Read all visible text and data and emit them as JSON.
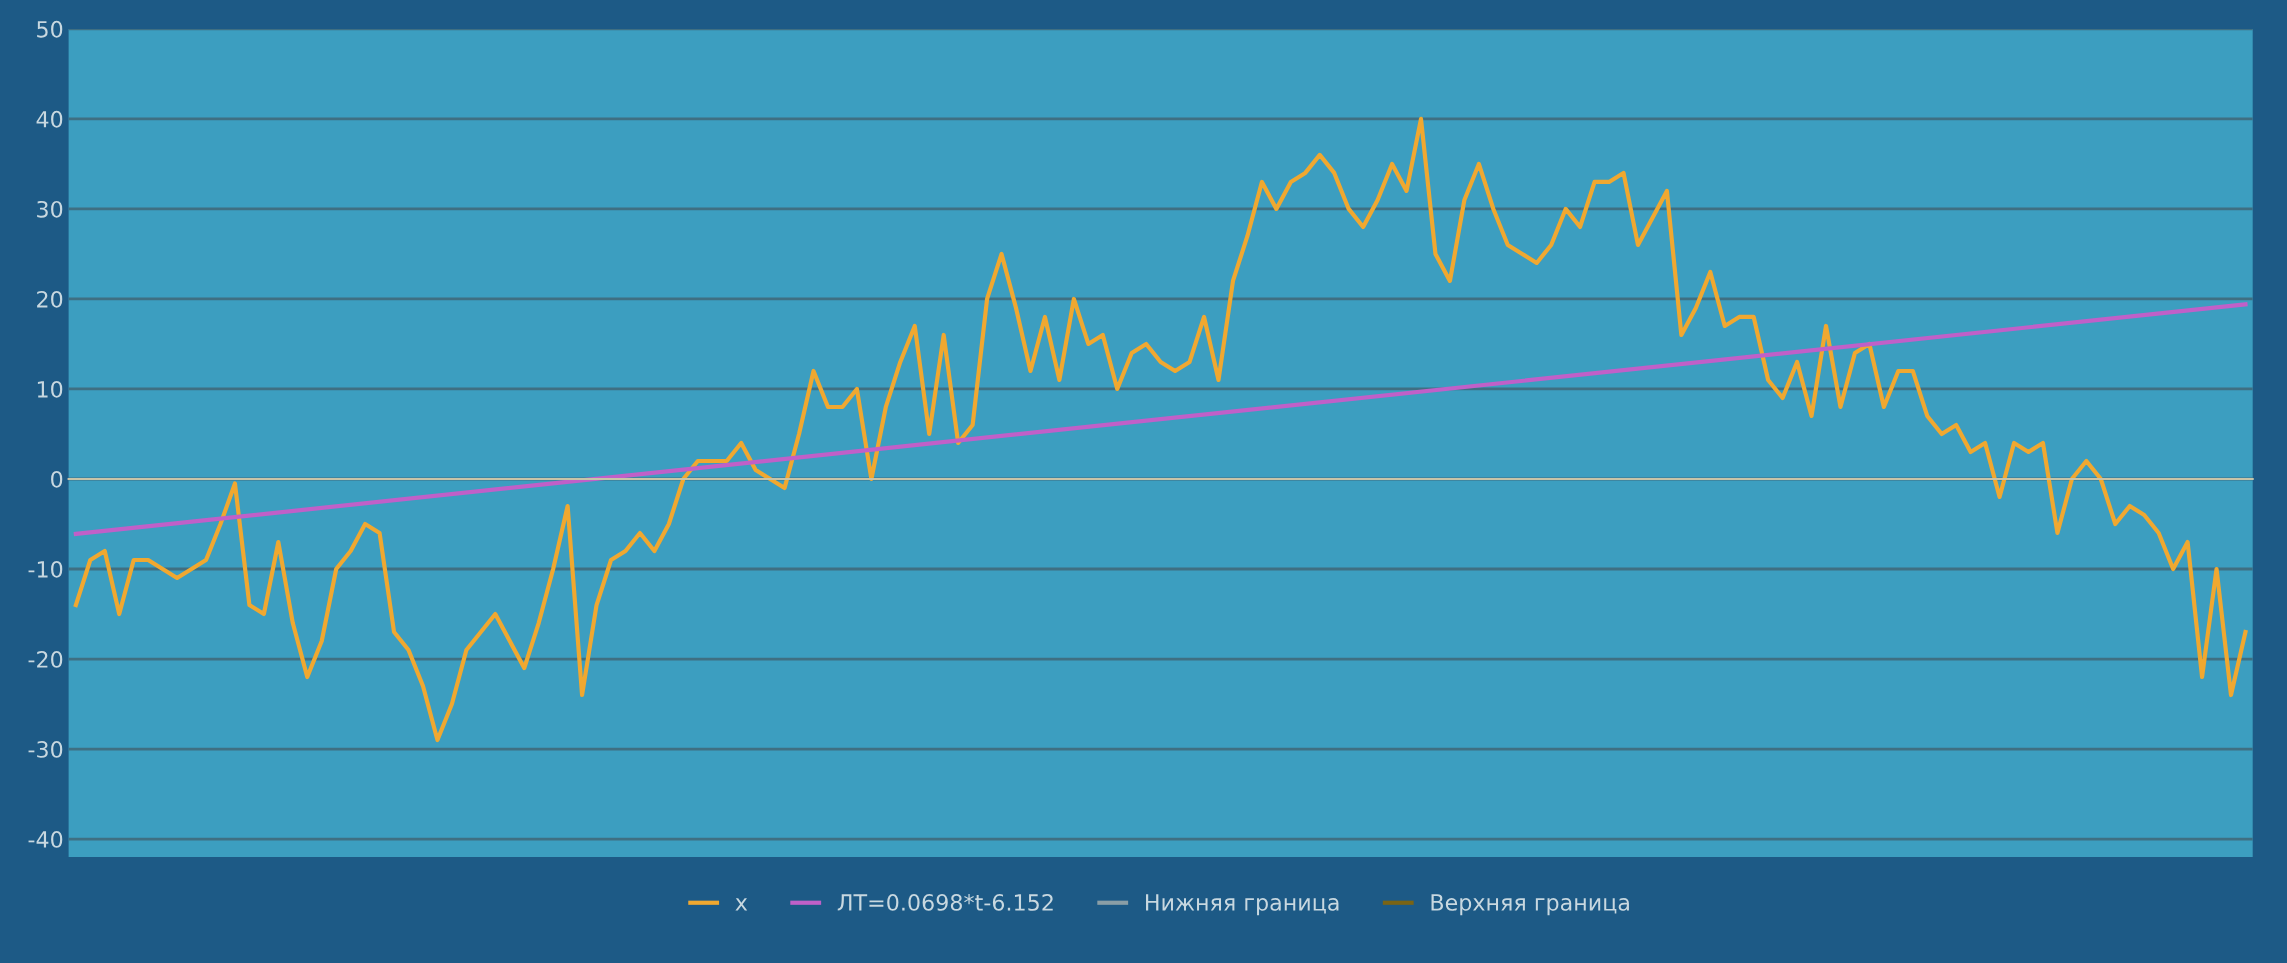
{
  "chart_data": {
    "type": "line",
    "categories": [
      null,
      null,
      null,
      null,
      null,
      null,
      null,
      null,
      null,
      null,
      null,
      null,
      null,
      null,
      null,
      null,
      null,
      null,
      null,
      null,
      null,
      null,
      null,
      null,
      null,
      null,
      null,
      null,
      null,
      null,
      null,
      null,
      null,
      null,
      null,
      null,
      null,
      null,
      null,
      null,
      null,
      null,
      null,
      null,
      null,
      null,
      null,
      null,
      null,
      null,
      null,
      null,
      null,
      null,
      null,
      null,
      null,
      null,
      null,
      null,
      null,
      null,
      null,
      null,
      null,
      null,
      null,
      null,
      null,
      null,
      null,
      null,
      null,
      null,
      null,
      null,
      null,
      null,
      null,
      null,
      null,
      null,
      null,
      null,
      null,
      null,
      null,
      null,
      null,
      null,
      null,
      null,
      null,
      null,
      null,
      null,
      null,
      null,
      null,
      null,
      null,
      null,
      null,
      null,
      null,
      null,
      null,
      null,
      null,
      null,
      null,
      null,
      null,
      null,
      null,
      null,
      null,
      null,
      null,
      null,
      null,
      null,
      null,
      null,
      null,
      null,
      null,
      null,
      null,
      null,
      null,
      null,
      null,
      null,
      null,
      null,
      null,
      null,
      null,
      null,
      null,
      null,
      null,
      null,
      null,
      null,
      null,
      null,
      null,
      null,
      null
    ],
    "series": [
      {
        "name": "x",
        "color": "#f0a830",
        "values": [
          -14,
          -9,
          -8,
          -15,
          -9,
          -9,
          -10,
          -11,
          -10,
          -9,
          -5,
          -0.5,
          -14,
          -15,
          -7,
          -16,
          -22,
          -18,
          -10,
          -8,
          -5,
          -6,
          -17,
          -19,
          -23,
          -29,
          -25,
          -19,
          -17,
          -15,
          -18,
          -21,
          -16,
          -10,
          -3,
          -24,
          -14,
          -9,
          -8,
          -6,
          -8,
          -5,
          0,
          2,
          2,
          2,
          4,
          1,
          0,
          -1,
          5,
          12,
          8,
          8,
          10,
          0,
          8,
          13,
          17,
          5,
          16,
          4,
          6,
          20,
          25,
          19,
          12,
          18,
          11,
          20,
          15,
          16,
          10,
          14,
          15,
          13,
          12,
          13,
          18,
          11,
          22,
          27,
          33,
          30,
          33,
          34,
          36,
          34,
          30,
          28,
          31,
          35,
          32,
          40,
          25,
          22,
          31,
          35,
          30,
          26,
          25,
          24,
          26,
          30,
          28,
          33,
          33,
          34,
          26,
          29,
          32,
          16,
          19,
          23,
          17,
          18,
          18,
          11,
          9,
          13,
          7,
          17,
          8,
          14,
          15,
          8,
          12,
          12,
          7,
          5,
          6,
          3,
          4,
          -2,
          4,
          3,
          4,
          -6,
          0,
          2,
          0,
          -5,
          -3,
          -4,
          -6,
          -10,
          -7,
          -22,
          -10,
          -24,
          -17
        ]
      },
      {
        "name": "ЛТ=0.0698*t-6.152",
        "color": "#c060c8",
        "values": [
          -6.1,
          null,
          null,
          null,
          null,
          null,
          null,
          null,
          null,
          null,
          null,
          null,
          null,
          null,
          null,
          null,
          null,
          null,
          null,
          null,
          null,
          null,
          null,
          null,
          null,
          null,
          null,
          null,
          null,
          null,
          null,
          null,
          null,
          null,
          null,
          null,
          null,
          null,
          null,
          null,
          null,
          null,
          null,
          null,
          null,
          null,
          null,
          null,
          null,
          null,
          null,
          null,
          null,
          null,
          null,
          null,
          null,
          null,
          null,
          null,
          null,
          null,
          null,
          null,
          null,
          null,
          null,
          null,
          null,
          null,
          null,
          null,
          null,
          null,
          null,
          null,
          null,
          null,
          null,
          null,
          null,
          null,
          null,
          null,
          null,
          null,
          null,
          null,
          null,
          null,
          null,
          null,
          null,
          null,
          null,
          null,
          null,
          null,
          null,
          null,
          null,
          null,
          null,
          null,
          null,
          null,
          null,
          null,
          null,
          null,
          null,
          null,
          null,
          null,
          null,
          null,
          null,
          null,
          null,
          null,
          null,
          null,
          null,
          null,
          null,
          null,
          null,
          null,
          null,
          null,
          null,
          null,
          null,
          null,
          null,
          null,
          null,
          null,
          null,
          null,
          null,
          null,
          null,
          null,
          null,
          null,
          null,
          null,
          null,
          null,
          19.4
        ]
      },
      {
        "name": "Нижняя граница",
        "color": "#8a9ea6",
        "values": [
          null,
          null,
          null,
          null,
          null,
          null,
          null,
          null,
          null,
          null,
          null,
          null,
          null,
          null,
          null,
          null,
          null,
          null,
          null,
          null,
          null,
          null,
          null,
          null,
          null,
          null,
          null,
          null,
          null,
          null,
          null,
          null,
          null,
          null,
          null,
          null,
          null,
          null,
          null,
          null,
          null,
          null,
          null,
          null,
          null,
          null,
          null,
          null,
          null,
          null,
          null,
          null,
          null,
          null,
          null,
          null,
          null,
          null,
          null,
          null,
          null,
          null,
          null,
          null,
          null,
          null,
          null,
          null,
          null,
          null,
          null,
          null,
          null,
          null,
          null,
          null,
          null,
          null,
          null,
          null,
          null,
          null,
          null,
          null,
          null,
          null,
          null,
          null,
          null,
          null,
          null,
          null,
          null,
          null,
          null,
          null,
          null,
          null,
          null,
          null,
          null,
          null,
          null,
          null,
          null,
          null,
          null,
          null,
          null,
          null,
          null,
          null,
          null,
          null,
          null,
          null,
          null,
          null,
          null,
          null,
          null,
          null,
          null,
          null,
          null,
          null,
          null,
          null,
          null,
          null,
          null,
          null,
          null,
          null,
          null,
          null,
          null,
          null,
          null,
          null,
          null,
          null,
          null,
          null,
          null,
          null,
          null,
          null,
          null,
          null,
          null
        ]
      },
      {
        "name": "Верхняя граница",
        "color": "#7a6414",
        "values": [
          null,
          null,
          null,
          null,
          null,
          null,
          null,
          null,
          null,
          null,
          null,
          null,
          null,
          null,
          null,
          null,
          null,
          null,
          null,
          null,
          null,
          null,
          null,
          null,
          null,
          null,
          null,
          null,
          null,
          null,
          null,
          null,
          null,
          null,
          null,
          null,
          null,
          null,
          null,
          null,
          null,
          null,
          null,
          null,
          null,
          null,
          null,
          null,
          null,
          null,
          null,
          null,
          null,
          null,
          null,
          null,
          null,
          null,
          null,
          null,
          null,
          null,
          null,
          null,
          null,
          null,
          null,
          null,
          null,
          null,
          null,
          null,
          null,
          null,
          null,
          null,
          null,
          null,
          null,
          null,
          null,
          null,
          null,
          null,
          null,
          null,
          null,
          null,
          null,
          null,
          null,
          null,
          null,
          null,
          null,
          null,
          null,
          null,
          null,
          null,
          null,
          null,
          null,
          null,
          null,
          null,
          null,
          null,
          null,
          null,
          null,
          null,
          null,
          null,
          null,
          null,
          null,
          null,
          null,
          null,
          null,
          null,
          null,
          null,
          null,
          null,
          null,
          null,
          null,
          null,
          null,
          null,
          null,
          null,
          null,
          null,
          null,
          null,
          null,
          null,
          null,
          null,
          null,
          null,
          null,
          null,
          null,
          null,
          null,
          null,
          null
        ]
      }
    ],
    "ylim": [
      -42,
      50
    ],
    "yticks": [
      -40,
      -30,
      -20,
      -10,
      0,
      10,
      20,
      30,
      40,
      50
    ],
    "grid": "y",
    "legend": "bottom",
    "tick_labels": "y"
  }
}
